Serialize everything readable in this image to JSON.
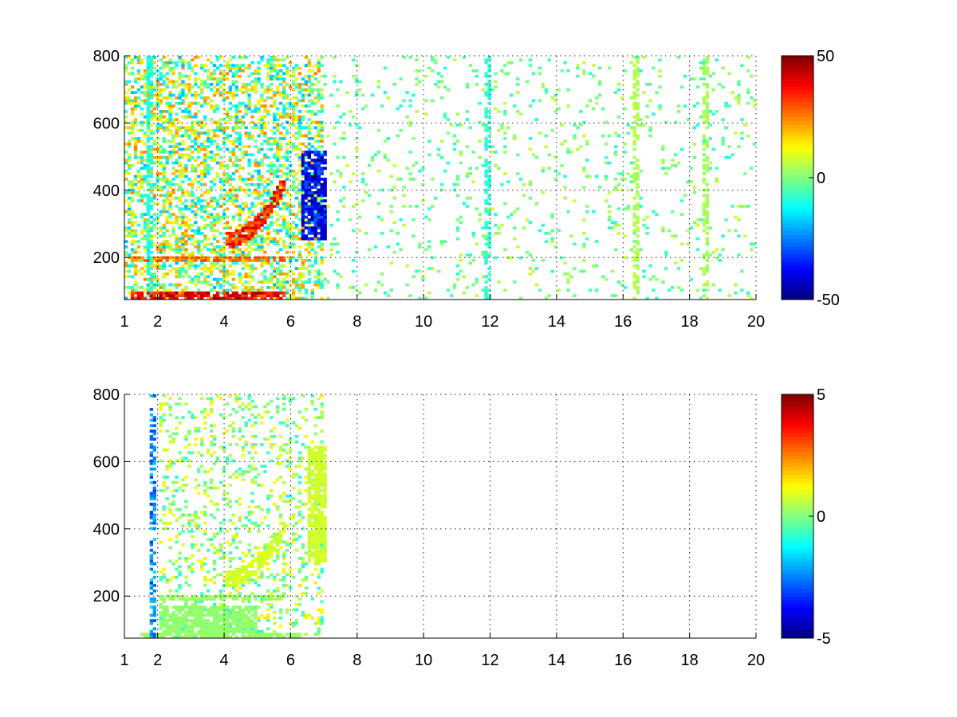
{
  "chart_data": [
    {
      "type": "heatmap",
      "title": "",
      "xlabel": "",
      "ylabel": "",
      "xlim": [
        1,
        20
      ],
      "ylim": [
        75,
        800
      ],
      "x_ticks": [
        1,
        2,
        4,
        6,
        8,
        10,
        12,
        14,
        16,
        18,
        20
      ],
      "x_tick_labels": [
        "1",
        "2",
        "4",
        "6",
        "8",
        "10",
        "12",
        "14",
        "16",
        "18",
        "20"
      ],
      "y_ticks": [
        200,
        400,
        600,
        800
      ],
      "y_tick_labels": [
        "200",
        "400",
        "600",
        "800"
      ],
      "grid": true,
      "colormap": "jet",
      "clim": [
        -50,
        50
      ],
      "colorbar_ticks": [
        50,
        0,
        -50
      ],
      "colorbar_tick_labels": [
        "50",
        "0",
        "-50"
      ],
      "features": [
        {
          "shape": "band",
          "x": [
            1.2,
            5.8
          ],
          "y": [
            75,
            100
          ],
          "value": 45
        },
        {
          "shape": "band",
          "x": [
            1.2,
            5.8
          ],
          "y": [
            185,
            205
          ],
          "value": 30
        },
        {
          "shape": "band",
          "x": [
            4.0,
            5.8
          ],
          "y_start": 250,
          "y_end": 420,
          "value": 40
        },
        {
          "shape": "band",
          "x": [
            6.3,
            7.1
          ],
          "y": [
            250,
            520
          ],
          "value": -45
        },
        {
          "shape": "column",
          "x": 1.75,
          "value": -12
        },
        {
          "shape": "column",
          "x": 11.9,
          "value": -10
        },
        {
          "shape": "column",
          "x": 16.4,
          "value": 6
        },
        {
          "shape": "column",
          "x": 18.5,
          "value": 5
        },
        {
          "shape": "noise",
          "x": [
            1,
            7
          ],
          "value_range": [
            -20,
            25
          ],
          "density": 0.45
        },
        {
          "shape": "noise",
          "x": [
            7,
            20
          ],
          "value_range": [
            -10,
            8
          ],
          "density": 0.07
        }
      ]
    },
    {
      "type": "heatmap",
      "title": "",
      "xlabel": "",
      "ylabel": "",
      "xlim": [
        1,
        20
      ],
      "ylim": [
        75,
        800
      ],
      "x_ticks": [
        1,
        2,
        4,
        6,
        8,
        10,
        12,
        14,
        16,
        18,
        20
      ],
      "x_tick_labels": [
        "1",
        "2",
        "4",
        "6",
        "8",
        "10",
        "12",
        "14",
        "16",
        "18",
        "20"
      ],
      "y_ticks": [
        200,
        400,
        600,
        800
      ],
      "y_tick_labels": [
        "200",
        "400",
        "600",
        "800"
      ],
      "grid": true,
      "colormap": "jet",
      "clim": [
        -5,
        5
      ],
      "colorbar_ticks": [
        5,
        0,
        -5
      ],
      "colorbar_tick_labels": [
        "5",
        "0",
        "-5"
      ],
      "features": [
        {
          "shape": "band",
          "x": [
            1.5,
            6.3
          ],
          "y": [
            75,
            95
          ],
          "value": 0.3
        },
        {
          "shape": "band",
          "x": [
            2.0,
            5.0
          ],
          "y": [
            95,
            175
          ],
          "value": 0.2
        },
        {
          "shape": "band",
          "x": [
            2.0,
            5.8
          ],
          "y": [
            185,
            205
          ],
          "value": 0.3
        },
        {
          "shape": "band",
          "x": [
            4.0,
            5.8
          ],
          "y_start": 250,
          "y_end": 400,
          "value": 1.0
        },
        {
          "shape": "band",
          "x": [
            6.5,
            7.1
          ],
          "y": [
            300,
            650
          ],
          "value": 0.9
        },
        {
          "shape": "column",
          "x": 1.85,
          "value": -3
        },
        {
          "shape": "noise",
          "x": [
            2,
            7
          ],
          "value_range": [
            -1,
            1.5
          ],
          "density": 0.2
        }
      ]
    }
  ]
}
